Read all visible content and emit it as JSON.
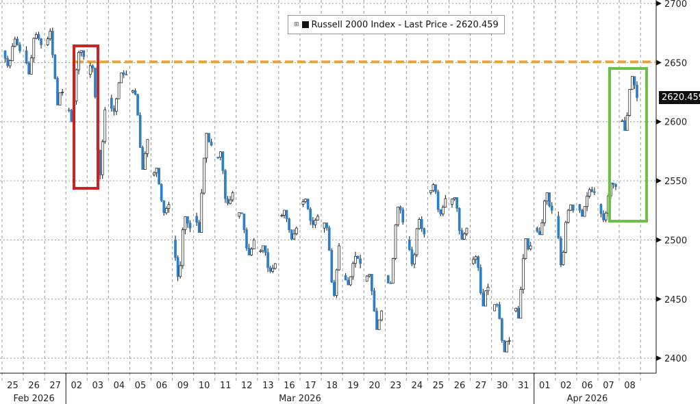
{
  "chart_data": {
    "type": "candlestick",
    "title": "Russell 2000 Index - Last Price 2620.459",
    "legend": {
      "label": "Russell 2000 Index - Last Price",
      "value": "2620.459",
      "placement": "top-center"
    },
    "last_price": "2620.459",
    "ylim": [
      2380,
      2700
    ],
    "yticks": [
      2400,
      2450,
      2500,
      2550,
      2600,
      2650,
      2700
    ],
    "reference_line": {
      "value": 2650,
      "color": "#f0a030"
    },
    "highlights": [
      {
        "from": "02",
        "to": "03",
        "color": "#cc2222"
      },
      {
        "from": "08",
        "to": "08",
        "color": "#6cc04a"
      }
    ],
    "days": [
      "25",
      "26",
      "27",
      "02",
      "03",
      "04",
      "05",
      "06",
      "09",
      "10",
      "11",
      "12",
      "13",
      "16",
      "17",
      "18",
      "19",
      "20",
      "23",
      "24",
      "25",
      "26",
      "27",
      "30",
      "31",
      "01",
      "02",
      "06",
      "07",
      "08"
    ],
    "months": [
      {
        "label": "Feb 2026",
        "start": 0,
        "end": 2
      },
      {
        "label": "Mar 2026",
        "start": 3,
        "end": 24
      },
      {
        "label": "Apr 2026",
        "start": 25,
        "end": 29
      }
    ],
    "ohlc": [
      [
        2660,
        2672,
        2645,
        2660
      ],
      [
        2660,
        2678,
        2640,
        2665
      ],
      [
        2665,
        2680,
        2615,
        2625
      ],
      [
        2610,
        2660,
        2600,
        2655
      ],
      [
        2640,
        2655,
        2550,
        2610
      ],
      [
        2620,
        2645,
        2605,
        2640
      ],
      [
        2625,
        2628,
        2560,
        2585
      ],
      [
        2555,
        2560,
        2520,
        2530
      ],
      [
        2500,
        2520,
        2465,
        2510
      ],
      [
        2520,
        2590,
        2510,
        2580
      ],
      [
        2570,
        2575,
        2525,
        2540
      ],
      [
        2520,
        2522,
        2485,
        2500
      ],
      [
        2490,
        2495,
        2472,
        2480
      ],
      [
        2520,
        2525,
        2500,
        2510
      ],
      [
        2530,
        2535,
        2510,
        2520
      ],
      [
        2510,
        2512,
        2450,
        2495
      ],
      [
        2470,
        2490,
        2460,
        2480
      ],
      [
        2465,
        2470,
        2425,
        2440
      ],
      [
        2470,
        2530,
        2465,
        2515
      ],
      [
        2500,
        2520,
        2475,
        2505
      ],
      [
        2540,
        2548,
        2520,
        2535
      ],
      [
        2530,
        2535,
        2500,
        2510
      ],
      [
        2480,
        2490,
        2445,
        2460
      ],
      [
        2440,
        2450,
        2405,
        2415
      ],
      [
        2440,
        2500,
        2435,
        2495
      ],
      [
        2510,
        2540,
        2505,
        2525
      ],
      [
        2520,
        2530,
        2470,
        2525
      ],
      [
        2530,
        2545,
        2520,
        2540
      ],
      [
        2530,
        2548,
        2515,
        2545
      ],
      [
        2600,
        2638,
        2595,
        2620.459
      ]
    ],
    "colors": {
      "up": "#ffffff",
      "down": "#2f7fc8",
      "wick": "#111111"
    }
  }
}
